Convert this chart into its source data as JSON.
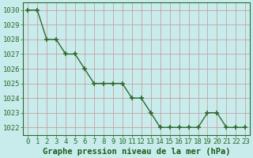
{
  "x": [
    0,
    1,
    2,
    3,
    4,
    5,
    6,
    7,
    8,
    9,
    10,
    11,
    12,
    13,
    14,
    15,
    16,
    17,
    18,
    19,
    20,
    21,
    22,
    23
  ],
  "y": [
    1030,
    1030,
    1028,
    1028,
    1027,
    1027,
    1026,
    1025,
    1025,
    1025,
    1025,
    1024,
    1024,
    1023,
    1022,
    1022,
    1022,
    1022,
    1022,
    1023,
    1023,
    1022,
    1022,
    1022
  ],
  "line_color": "#2d6a2d",
  "marker_color": "#2d6a2d",
  "bg_color": "#c8ecec",
  "grid_major_color": "#c8a0a0",
  "grid_minor_color": "#c8a0a0",
  "xlabel": "Graphe pression niveau de la mer (hPa)",
  "xlabel_color": "#1a5c1a",
  "ylim": [
    1021.5,
    1030.5
  ],
  "yticks": [
    1022,
    1023,
    1024,
    1025,
    1026,
    1027,
    1028,
    1029,
    1030
  ],
  "xticks": [
    0,
    1,
    2,
    3,
    4,
    5,
    6,
    7,
    8,
    9,
    10,
    11,
    12,
    13,
    14,
    15,
    16,
    17,
    18,
    19,
    20,
    21,
    22,
    23
  ],
  "tick_fontsize": 6.5,
  "xlabel_fontsize": 7.5,
  "marker_size": 4,
  "line_width": 1.0
}
